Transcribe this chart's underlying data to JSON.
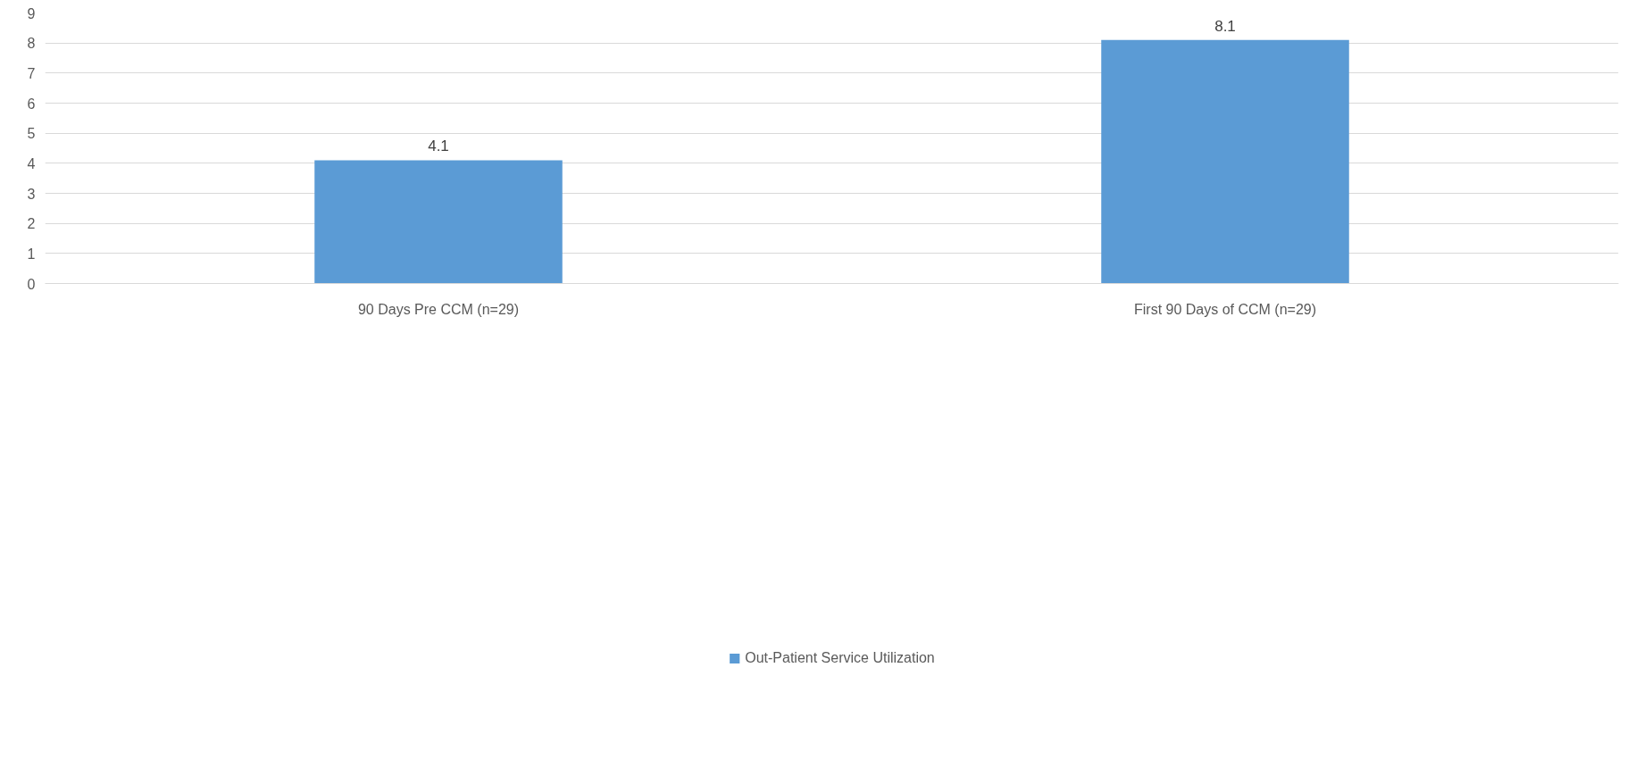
{
  "chart_data": {
    "type": "bar",
    "categories": [
      "90 Days Pre CCM (n=29)",
      "First 90 Days of CCM (n=29)"
    ],
    "series": [
      {
        "name": "Out-Patient Service Utilization",
        "color": "#5b9bd5",
        "values": [
          4.1,
          8.1
        ]
      }
    ],
    "ylim": [
      0,
      9
    ],
    "yticks": [
      0,
      1,
      2,
      3,
      4,
      5,
      6,
      7,
      8,
      9
    ],
    "grid": "y",
    "legend": "bottom",
    "data_labels": true
  }
}
